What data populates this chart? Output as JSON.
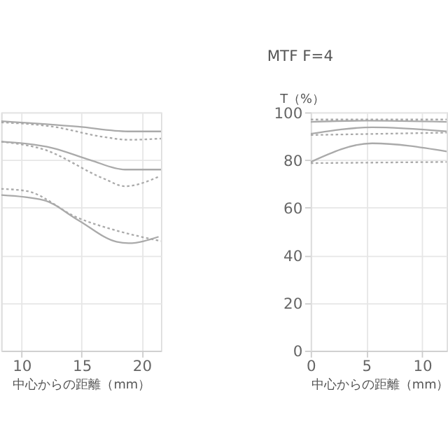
{
  "chart_data": [
    {
      "type": "line",
      "xlabel": "中心からの距離（mm）",
      "xlim": [
        8.3,
        21.6
      ],
      "xticks": [
        10,
        15,
        20
      ],
      "ylim": [
        0,
        100
      ],
      "yticks": [
        0,
        20,
        40,
        60,
        80,
        100
      ],
      "tick_labels": "x",
      "grid": true,
      "series": [
        {
          "color": "#aaaaaa",
          "line_style": "solid",
          "x": [
            8.3,
            14.7,
            18.9,
            21.6
          ],
          "values": [
            96.3,
            94,
            92,
            92
          ]
        },
        {
          "color": "#aaaaaa",
          "line_style": "dotted",
          "x": [
            8.3,
            12.6,
            16.8,
            18.9,
            21.6
          ],
          "values": [
            95.8,
            94,
            89.7,
            88.5,
            89
          ]
        },
        {
          "color": "#aaaaaa",
          "line_style": "solid",
          "x": [
            8.3,
            12.6,
            15.7,
            18.6,
            21.6
          ],
          "values": [
            87.7,
            85,
            80,
            76,
            76
          ]
        },
        {
          "color": "#aaaaaa",
          "line_style": "dotted",
          "x": [
            8.3,
            11.8,
            16.8,
            18.6,
            21.4
          ],
          "values": [
            87.7,
            84.5,
            72.3,
            69,
            73
          ]
        },
        {
          "color": "#aaaaaa",
          "line_style": "solid",
          "x": [
            8.3,
            11.8,
            14.7,
            17.9,
            18.9,
            21.4
          ],
          "values": [
            65.3,
            63.2,
            54.8,
            45.7,
            45.1,
            47.8
          ]
        },
        {
          "color": "#aaaaaa",
          "line_style": "dotted",
          "x": [
            8.3,
            10.4,
            14.7,
            17.9,
            21.6
          ],
          "values": [
            67.9,
            67,
            55.7,
            50.4,
            46
          ]
        }
      ]
    },
    {
      "type": "line",
      "title": "MTF F=4",
      "ylabel": "T（%）",
      "xlabel": "中心からの距離（mm）",
      "xlim": [
        0,
        12.2
      ],
      "xticks": [
        0,
        5,
        10
      ],
      "ylim": [
        0,
        100
      ],
      "yticks": [
        0,
        20,
        40,
        60,
        80,
        100
      ],
      "grid": true,
      "series": [
        {
          "color": "#aaaaaa",
          "line_style": "solid",
          "x": [
            0,
            5,
            12.2
          ],
          "values": [
            96,
            96.5,
            96
          ]
        },
        {
          "color": "#aaaaaa",
          "line_style": "dotted",
          "x": [
            0,
            5,
            12.2
          ],
          "values": [
            97,
            97,
            97
          ]
        },
        {
          "color": "#aaaaaa",
          "line_style": "solid",
          "x": [
            0,
            5.5,
            12.2
          ],
          "values": [
            91,
            93.7,
            92
          ]
        },
        {
          "color": "#aaaaaa",
          "line_style": "dotted",
          "x": [
            0,
            12.2
          ],
          "values": [
            90.5,
            91.5
          ]
        },
        {
          "color": "#aaaaaa",
          "line_style": "solid",
          "x": [
            0,
            5.5,
            12.2
          ],
          "values": [
            79.2,
            87,
            83.6
          ]
        },
        {
          "color": "#aaaaaa",
          "line_style": "dotted",
          "x": [
            0,
            12.2
          ],
          "values": [
            78.7,
            79.2
          ]
        }
      ]
    }
  ]
}
